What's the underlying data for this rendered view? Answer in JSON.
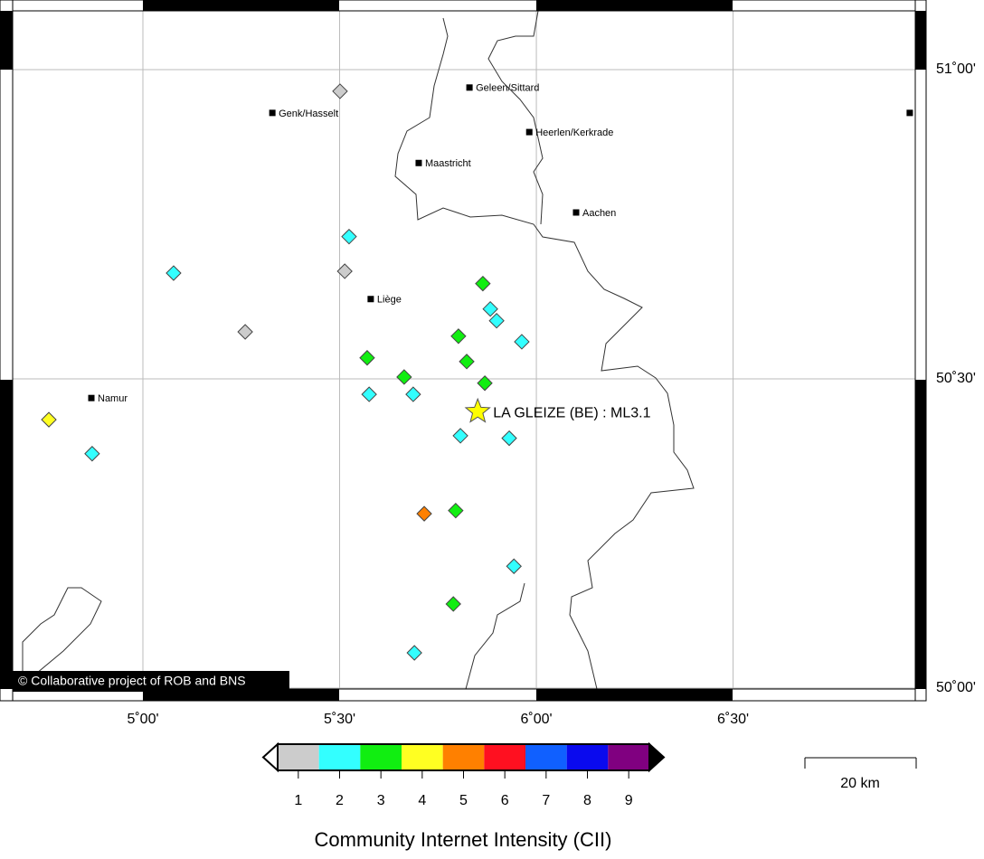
{
  "map": {
    "xlim": [
      4.669,
      6.963
    ],
    "ylim": [
      50.0,
      51.095
    ],
    "xticks": [
      {
        "value": 5,
        "label": "5˚00'"
      },
      {
        "value": 5.5,
        "label": "5˚30'"
      },
      {
        "value": 6,
        "label": "6˚00'"
      },
      {
        "value": 6.5,
        "label": "6˚30'"
      }
    ],
    "yticks": [
      {
        "value": 50,
        "label": "50˚00'"
      },
      {
        "value": 50.5,
        "label": "50˚30'"
      },
      {
        "value": 51,
        "label": "51˚00'"
      }
    ],
    "grid": true,
    "cities": [
      {
        "name": "Genk/Hasselt",
        "lon": 5.329,
        "lat": 50.93
      },
      {
        "name": "Geleen/Sittard",
        "lon": 5.83,
        "lat": 50.971
      },
      {
        "name": "Heerlen/Kerkrade",
        "lon": 5.982,
        "lat": 50.899
      },
      {
        "name": "Maastricht",
        "lon": 5.701,
        "lat": 50.849
      },
      {
        "name": "Aachen",
        "lon": 6.101,
        "lat": 50.769
      },
      {
        "name": "Liège",
        "lon": 5.579,
        "lat": 50.629
      },
      {
        "name": "Namur",
        "lon": 4.869,
        "lat": 50.469
      },
      {
        "name": null,
        "lon": 6.949,
        "lat": 50.93
      }
    ],
    "markers": [
      {
        "lon": 5.501,
        "lat": 50.965,
        "intensity": 1
      },
      {
        "lon": 5.524,
        "lat": 50.73,
        "intensity": 2
      },
      {
        "lon": 5.078,
        "lat": 50.671,
        "intensity": 2
      },
      {
        "lon": 5.513,
        "lat": 50.674,
        "intensity": 1
      },
      {
        "lon": 5.26,
        "lat": 50.576,
        "intensity": 1
      },
      {
        "lon": 5.864,
        "lat": 50.654,
        "intensity": 3
      },
      {
        "lon": 5.883,
        "lat": 50.613,
        "intensity": 2
      },
      {
        "lon": 5.899,
        "lat": 50.594,
        "intensity": 2
      },
      {
        "lon": 5.963,
        "lat": 50.56,
        "intensity": 2
      },
      {
        "lon": 5.802,
        "lat": 50.569,
        "intensity": 3
      },
      {
        "lon": 5.57,
        "lat": 50.534,
        "intensity": 3
      },
      {
        "lon": 5.823,
        "lat": 50.528,
        "intensity": 3
      },
      {
        "lon": 5.664,
        "lat": 50.503,
        "intensity": 3
      },
      {
        "lon": 5.869,
        "lat": 50.493,
        "intensity": 3
      },
      {
        "lon": 5.575,
        "lat": 50.475,
        "intensity": 2
      },
      {
        "lon": 5.687,
        "lat": 50.475,
        "intensity": 2
      },
      {
        "lon": 4.761,
        "lat": 50.434,
        "intensity": 4
      },
      {
        "lon": 4.871,
        "lat": 50.379,
        "intensity": 2
      },
      {
        "lon": 5.807,
        "lat": 50.408,
        "intensity": 2
      },
      {
        "lon": 5.931,
        "lat": 50.404,
        "intensity": 2
      },
      {
        "lon": 5.715,
        "lat": 50.282,
        "intensity": 5
      },
      {
        "lon": 5.795,
        "lat": 50.287,
        "intensity": 3
      },
      {
        "lon": 5.943,
        "lat": 50.197,
        "intensity": 2
      },
      {
        "lon": 5.789,
        "lat": 50.136,
        "intensity": 3
      },
      {
        "lon": 5.69,
        "lat": 50.057,
        "intensity": 2
      }
    ],
    "epicenter": {
      "label": "LA GLEIZE (BE) : ML3.1",
      "lon": 5.851,
      "lat": 50.447,
      "color": "#ffff00"
    },
    "copyright": "© Collaborative project of ROB and BNS",
    "colorbar": {
      "title": "Community Internet Intensity (CII)",
      "levels": [
        1,
        2,
        3,
        4,
        5,
        6,
        7,
        8,
        9
      ],
      "colors": [
        "#cccccc",
        "#33ffff",
        "#11ee11",
        "#ffff22",
        "#ff8000",
        "#ff1020",
        "#1060ff",
        "#0a0aee",
        "#800080"
      ]
    },
    "scalebar": {
      "label": "20 km"
    }
  }
}
